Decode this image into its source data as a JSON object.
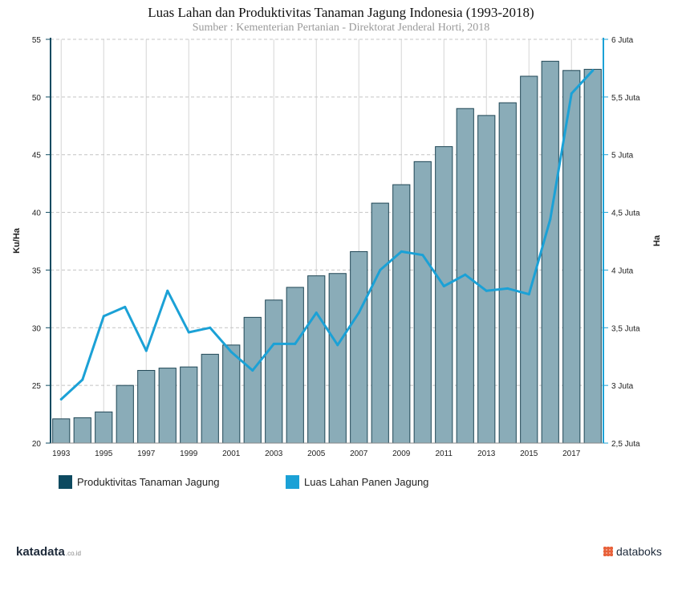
{
  "chart_data": {
    "type": "bar+line",
    "title": "Luas Lahan dan Produktivitas Tanaman Jagung Indonesia (1993-2018)",
    "subtitle": "Sumber : Kementerian Pertanian - Direktorat Jenderal Horti, 2018",
    "x": [
      1993,
      1994,
      1995,
      1996,
      1997,
      1998,
      1999,
      2000,
      2001,
      2002,
      2003,
      2004,
      2005,
      2006,
      2007,
      2008,
      2009,
      2010,
      2011,
      2012,
      2013,
      2014,
      2015,
      2016,
      2017,
      2018
    ],
    "x_tick_labels": [
      "1993",
      "1995",
      "1997",
      "1999",
      "2001",
      "2003",
      "2005",
      "2007",
      "2009",
      "2011",
      "2013",
      "2015",
      "2017"
    ],
    "y_left": {
      "label": "Ku/Ha",
      "min": 20,
      "max": 55,
      "ticks": [
        "20",
        "25",
        "30",
        "35",
        "40",
        "45",
        "50",
        "55"
      ]
    },
    "y_right": {
      "label": "Ha",
      "min": 2.5,
      "max": 6,
      "ticks": [
        "2,5 Juta",
        "3 Juta",
        "3,5 Juta",
        "4 Juta",
        "4,5 Juta",
        "5 Juta",
        "5,5 Juta",
        "6 Juta"
      ]
    },
    "grid": true,
    "legend_position": "bottom-left",
    "series": [
      {
        "name": "Produktivitas Tanaman Jagung",
        "type": "bar",
        "axis": "left",
        "color": "#8aacb8",
        "legend_color": "#0d4a60",
        "values": [
          22.1,
          22.2,
          22.7,
          25.0,
          26.3,
          26.5,
          26.6,
          27.7,
          28.5,
          30.9,
          32.4,
          33.5,
          34.5,
          34.7,
          36.6,
          40.8,
          42.4,
          44.4,
          45.7,
          49.0,
          48.4,
          49.5,
          51.8,
          53.1,
          52.3,
          52.4
        ]
      },
      {
        "name": "Luas Lahan Panen Jagung",
        "type": "line",
        "axis": "right",
        "color": "#1ba1d6",
        "values": [
          2.88,
          3.05,
          3.6,
          3.68,
          3.3,
          3.82,
          3.46,
          3.5,
          3.29,
          3.13,
          3.36,
          3.36,
          3.63,
          3.35,
          3.63,
          4.0,
          4.16,
          4.13,
          3.86,
          3.96,
          3.82,
          3.84,
          3.79,
          4.44,
          5.53,
          5.73
        ]
      }
    ]
  },
  "brand": {
    "left": "katadata",
    "left_suffix": ".co.id",
    "right": "databoks"
  }
}
